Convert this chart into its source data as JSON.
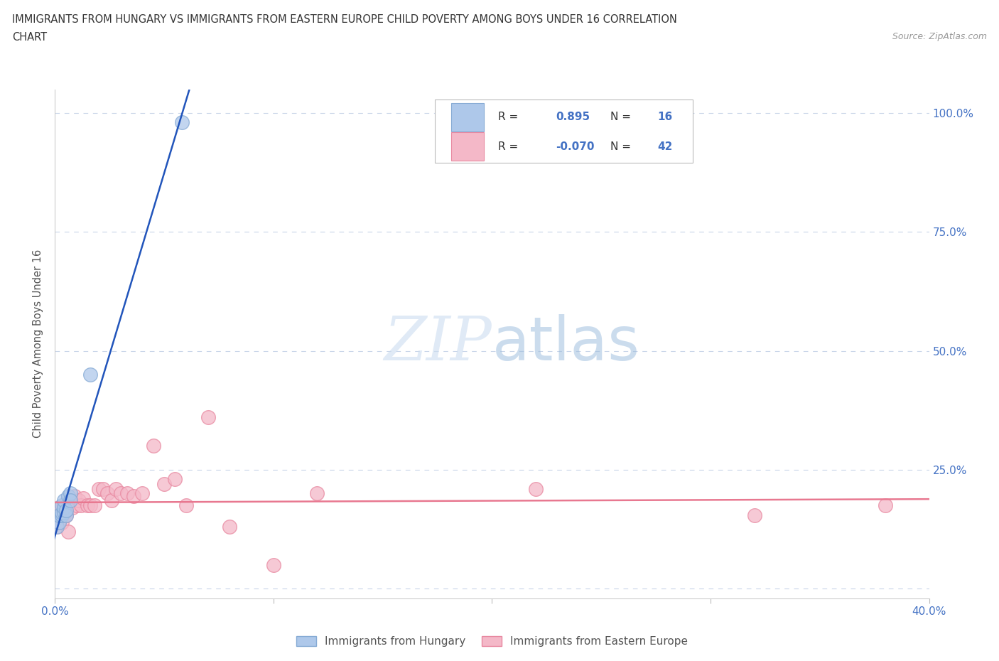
{
  "title_line1": "IMMIGRANTS FROM HUNGARY VS IMMIGRANTS FROM EASTERN EUROPE CHILD POVERTY AMONG BOYS UNDER 16 CORRELATION",
  "title_line2": "CHART",
  "source": "Source: ZipAtlas.com",
  "ylabel": "Child Poverty Among Boys Under 16",
  "xlim": [
    0.0,
    0.4
  ],
  "ylim": [
    -0.02,
    1.05
  ],
  "background_color": "#ffffff",
  "grid_color": "#c8d4e8",
  "hungary_dot_color": "#aec8ea",
  "hungary_edge_color": "#85aad4",
  "eastern_dot_color": "#f4b8c8",
  "eastern_edge_color": "#e888a0",
  "line_hungary_color": "#2255bb",
  "line_eastern_color": "#e87890",
  "r_hungary": 0.895,
  "n_hungary": 16,
  "r_eastern": -0.07,
  "n_eastern": 42,
  "hungary_x": [
    0.001,
    0.002,
    0.002,
    0.003,
    0.003,
    0.003,
    0.004,
    0.004,
    0.004,
    0.005,
    0.005,
    0.006,
    0.007,
    0.007,
    0.016,
    0.058
  ],
  "hungary_y": [
    0.13,
    0.14,
    0.155,
    0.155,
    0.16,
    0.175,
    0.16,
    0.17,
    0.185,
    0.155,
    0.165,
    0.195,
    0.2,
    0.185,
    0.45,
    0.98
  ],
  "eastern_x": [
    0.001,
    0.001,
    0.002,
    0.002,
    0.002,
    0.003,
    0.003,
    0.004,
    0.004,
    0.005,
    0.005,
    0.006,
    0.007,
    0.008,
    0.009,
    0.01,
    0.011,
    0.012,
    0.013,
    0.015,
    0.016,
    0.018,
    0.02,
    0.022,
    0.024,
    0.026,
    0.028,
    0.03,
    0.033,
    0.036,
    0.04,
    0.045,
    0.05,
    0.055,
    0.06,
    0.07,
    0.08,
    0.1,
    0.12,
    0.22,
    0.32,
    0.38
  ],
  "eastern_y": [
    0.16,
    0.13,
    0.17,
    0.155,
    0.14,
    0.155,
    0.14,
    0.175,
    0.155,
    0.155,
    0.18,
    0.12,
    0.185,
    0.17,
    0.195,
    0.175,
    0.185,
    0.175,
    0.19,
    0.175,
    0.175,
    0.175,
    0.21,
    0.21,
    0.2,
    0.185,
    0.21,
    0.2,
    0.2,
    0.195,
    0.2,
    0.3,
    0.22,
    0.23,
    0.175,
    0.36,
    0.13,
    0.05,
    0.2,
    0.21,
    0.155,
    0.175
  ]
}
